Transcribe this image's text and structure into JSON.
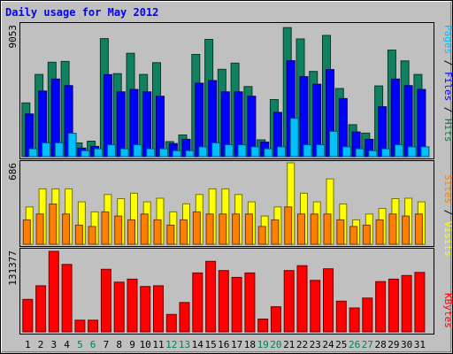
{
  "chart_data": {
    "type": "bar",
    "title": "Daily usage for May 2012",
    "categories": [
      "1",
      "2",
      "3",
      "4",
      "5",
      "6",
      "7",
      "8",
      "9",
      "10",
      "11",
      "12",
      "13",
      "14",
      "15",
      "16",
      "17",
      "18",
      "19",
      "20",
      "21",
      "22",
      "23",
      "24",
      "25",
      "26",
      "27",
      "28",
      "29",
      "30",
      "31"
    ],
    "weekend_days": [
      "5",
      "6",
      "12",
      "13",
      "19",
      "20",
      "26",
      "27"
    ],
    "top": {
      "ylabel_max": "9053",
      "ymax": 9053,
      "axis_labels": [
        {
          "text": "Pages",
          "color": "#00c0ff"
        },
        {
          "text": " / ",
          "color": "#000000"
        },
        {
          "text": "Files",
          "color": "#0000ff"
        },
        {
          "text": " / ",
          "color": "#000000"
        },
        {
          "text": "Hits",
          "color": "#008040"
        }
      ],
      "series": [
        {
          "name": "Hits",
          "color": "#108060",
          "values": [
            3710,
            5684,
            6528,
            6583,
            947,
            1071,
            8162,
            5739,
            7142,
            5684,
            6497,
            1041,
            1499,
            7062,
            8105,
            6037,
            6465,
            4842,
            1160,
            3944,
            8917,
            8133,
            5890,
            8378,
            4710,
            2210,
            1625,
            4890,
            7362,
            6620,
            5684
          ]
        },
        {
          "name": "Files",
          "color": "#0000ff",
          "values": [
            2948,
            4535,
            5363,
            4905,
            596,
            710,
            5668,
            4479,
            4641,
            4479,
            4172,
            904,
            1201,
            5080,
            5260,
            4479,
            4479,
            4172,
            1001,
            3058,
            6631,
            5528,
            5002,
            6020,
            4014,
            1707,
            1201,
            3451,
            5363,
            4905,
            4641
          ]
        },
        {
          "name": "Pages",
          "color": "#00c0ff",
          "values": [
            545,
            952,
            952,
            1617,
            412,
            545,
            817,
            545,
            817,
            545,
            545,
            412,
            412,
            682,
            952,
            817,
            817,
            682,
            545,
            682,
            2650,
            817,
            817,
            1749,
            682,
            545,
            412,
            545,
            817,
            682,
            682
          ]
        }
      ]
    },
    "middle": {
      "ylabel_max": "686",
      "ymax": 686,
      "axis_labels": [
        {
          "text": "Sites",
          "color": "#ff8000"
        },
        {
          "text": " / ",
          "color": "#000000"
        },
        {
          "text": "Visits",
          "color": "#ffff00"
        }
      ],
      "series": [
        {
          "name": "Visits",
          "color": "#ffff00",
          "values": [
            315,
            467,
            467,
            467,
            357,
            273,
            419,
            384,
            430,
            357,
            388,
            273,
            341,
            419,
            467,
            467,
            419,
            357,
            238,
            315,
            686,
            430,
            357,
            551,
            339,
            206,
            255,
            301,
            384,
            388,
            357
          ]
        },
        {
          "name": "Sites",
          "color": "#ff8000",
          "values": [
            206,
            255,
            339,
            255,
            161,
            150,
            273,
            238,
            206,
            255,
            206,
            161,
            206,
            273,
            255,
            255,
            255,
            255,
            150,
            206,
            315,
            255,
            255,
            255,
            206,
            150,
            161,
            206,
            255,
            238,
            255
          ]
        }
      ]
    },
    "bottom": {
      "ylabel_max": "131377",
      "ymax": 131377,
      "axis_labels": [
        {
          "text": "KBytes",
          "color": "#ff0000"
        }
      ],
      "series": [
        {
          "name": "KBytes",
          "color": "#ff0000",
          "values": [
            53000,
            75150,
            131377,
            110000,
            19050,
            19050,
            102000,
            81150,
            86000,
            74000,
            75150,
            28500,
            48000,
            96150,
            115000,
            100000,
            89000,
            96150,
            21000,
            41000,
            100000,
            108000,
            84000,
            103000,
            50150,
            39000,
            55150,
            82000,
            86000,
            92000,
            97000
          ]
        }
      ]
    }
  }
}
